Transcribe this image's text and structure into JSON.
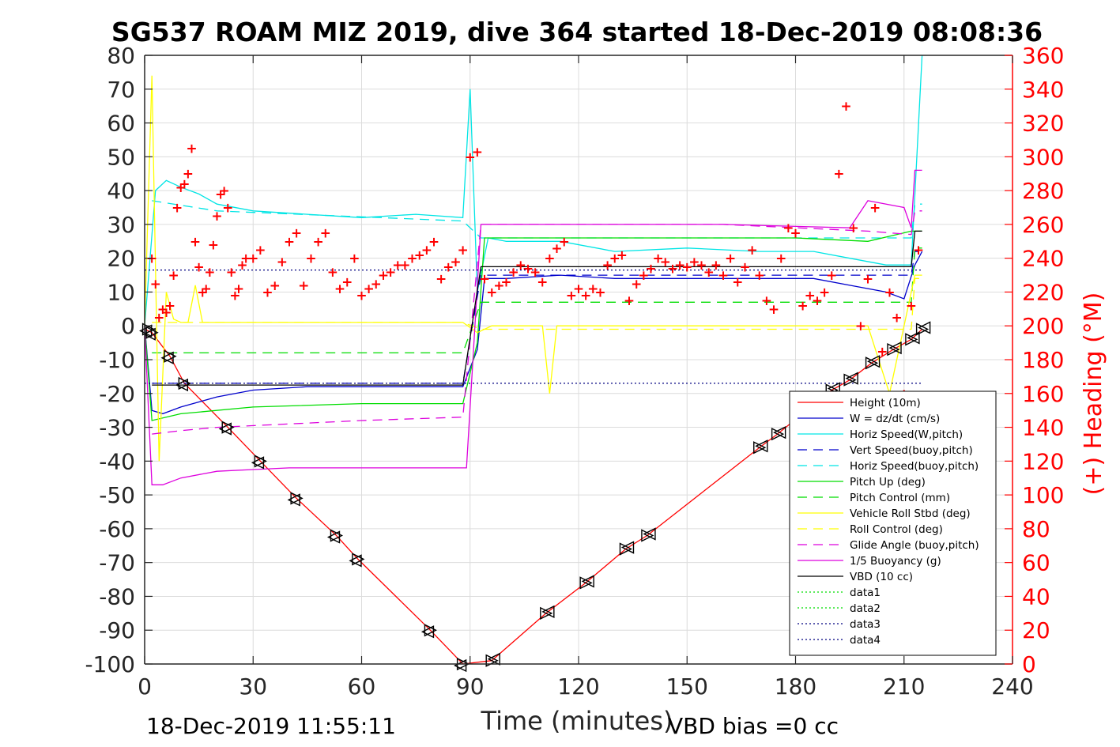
{
  "chart_data": {
    "type": "line",
    "title": "SG537 ROAM MIZ 2019, dive 364 started 18-Dec-2019 08:08:36",
    "xlabel": "Time (minutes)",
    "ylabel_right": "(+) Heading (°M)",
    "footer_left": "18-Dec-2019 11:55:11",
    "footer_right": "VBD bias =0 cc",
    "xlim": [
      0,
      240
    ],
    "ylim_left": [
      -100,
      80
    ],
    "ylim_right": [
      0,
      360
    ],
    "xticks": [
      0,
      30,
      60,
      90,
      120,
      150,
      180,
      210,
      240
    ],
    "yticks_left": [
      80,
      70,
      60,
      50,
      40,
      30,
      20,
      10,
      0,
      -10,
      -20,
      -30,
      -40,
      -50,
      -60,
      -70,
      -80,
      -90,
      -100
    ],
    "yticks_right": [
      360,
      340,
      320,
      300,
      280,
      260,
      240,
      220,
      200,
      180,
      160,
      140,
      120,
      100,
      80,
      60,
      40,
      20,
      0
    ],
    "grid": true,
    "legend_position": "bottom-right",
    "colors": {
      "axis": "#262626",
      "grid": "#dcdcdc",
      "right_axis": "#ff0000"
    },
    "series": [
      {
        "name": "Height (10m)",
        "color": "#ff0000",
        "dash": "",
        "x": [
          0,
          2,
          7,
          11,
          23,
          32,
          42,
          53,
          59,
          79,
          88,
          96,
          111,
          122,
          133,
          139,
          170,
          175,
          190,
          195,
          201,
          207,
          212,
          215
        ],
        "y": [
          -1,
          -2,
          -9,
          -17,
          -30,
          -40,
          -51,
          -62,
          -69,
          -90,
          -100,
          -99,
          -85,
          -76,
          -66,
          -62,
          -36,
          -32,
          -19,
          -16,
          -11,
          -7,
          -4,
          -1
        ]
      },
      {
        "name": "W = dz/dt (cm/s)",
        "color": "#0000cc",
        "dash": "",
        "x": [
          0,
          2,
          5,
          10,
          20,
          30,
          45,
          60,
          75,
          88,
          92,
          94,
          100,
          115,
          130,
          150,
          170,
          185,
          195,
          205,
          210,
          213,
          215
        ],
        "y": [
          0,
          -25,
          -26,
          -24,
          -21,
          -19,
          -18,
          -18,
          -18,
          -18,
          -7,
          14,
          14,
          15,
          14,
          14,
          14,
          14,
          12,
          10,
          8,
          18,
          22
        ]
      },
      {
        "name": "Horiz Speed(W,pitch)",
        "color": "#00e5e5",
        "dash": "",
        "x": [
          0,
          3,
          6,
          10,
          15,
          20,
          30,
          45,
          60,
          75,
          88,
          90,
          92,
          95,
          100,
          115,
          130,
          150,
          170,
          185,
          195,
          205,
          212,
          215
        ],
        "y": [
          0,
          40,
          43,
          41,
          39,
          36,
          34,
          33,
          32,
          33,
          32,
          70,
          10,
          26,
          25,
          25,
          22,
          23,
          22,
          22,
          20,
          18,
          18,
          80
        ]
      },
      {
        "name": "Vert Speed(buoy,pitch)",
        "color": "#0000cc",
        "dash": "12,8",
        "x": [
          2,
          88,
          93,
          212,
          213,
          215
        ],
        "y": [
          -17,
          -17,
          15,
          15,
          22,
          22
        ]
      },
      {
        "name": "Horiz Speed(buoy,pitch)",
        "color": "#00e5e5",
        "dash": "12,8",
        "x": [
          2,
          20,
          88,
          93,
          212,
          213,
          215
        ],
        "y": [
          37,
          34,
          31,
          26,
          26,
          36,
          36
        ]
      },
      {
        "name": "Pitch Up (deg)",
        "color": "#00dd00",
        "dash": "",
        "x": [
          0,
          2,
          10,
          30,
          60,
          88,
          92,
          94,
          120,
          150,
          180,
          200,
          212,
          215
        ],
        "y": [
          0,
          -28,
          -26,
          -24,
          -23,
          -23,
          -5,
          26,
          26,
          26,
          26,
          25,
          28,
          28
        ]
      },
      {
        "name": "Pitch Control (mm)",
        "color": "#00dd00",
        "dash": "12,8",
        "x": [
          2,
          88,
          93,
          212,
          213,
          215
        ],
        "y": [
          -8,
          -8,
          7,
          7,
          23,
          23
        ]
      },
      {
        "name": "Vehicle Roll Stbd (deg)",
        "color": "#ffff00",
        "dash": "",
        "x": [
          0,
          2,
          4,
          6,
          8,
          10,
          12,
          14,
          16,
          20,
          30,
          45,
          60,
          75,
          88,
          92,
          96,
          110,
          112,
          114,
          140,
          160,
          180,
          190,
          200,
          206,
          210,
          213,
          215
        ],
        "y": [
          0,
          74,
          -40,
          10,
          2,
          1,
          1,
          12,
          1,
          1,
          1,
          1,
          1,
          1,
          1,
          -2,
          0,
          0,
          -20,
          0,
          0,
          0,
          0,
          0,
          0,
          -20,
          0,
          15,
          15
        ]
      },
      {
        "name": "Roll Control (deg)",
        "color": "#ffff00",
        "dash": "12,8",
        "x": [
          2,
          88,
          93,
          212,
          213,
          215
        ],
        "y": [
          1,
          1,
          -1,
          -1,
          14,
          14
        ]
      },
      {
        "name": "Glide Angle (buoy,pitch)",
        "color": "#dd00dd",
        "dash": "12,8",
        "x": [
          2,
          10,
          20,
          40,
          60,
          88,
          93,
          120,
          160,
          200,
          212,
          213,
          215
        ],
        "y": [
          -32,
          -31,
          -30,
          -29,
          -28,
          -27,
          30,
          30,
          30,
          28,
          27,
          34,
          34
        ]
      },
      {
        "name": "1/5 Buoyancy (g)",
        "color": "#dd00dd",
        "dash": "",
        "x": [
          0,
          2,
          5,
          10,
          20,
          30,
          40,
          60,
          88,
          89,
          93,
          120,
          160,
          195,
          200,
          210,
          212,
          213,
          215
        ],
        "y": [
          0,
          -47,
          -47,
          -45,
          -43,
          -42.5,
          -42,
          -42,
          -42,
          -42,
          30,
          30,
          30,
          29,
          37,
          35,
          29,
          46,
          46
        ]
      },
      {
        "name": "VBD (10 cc)",
        "color": "#000000",
        "dash": "",
        "x": [
          2,
          88,
          93,
          212,
          213,
          215
        ],
        "y": [
          -17.5,
          -17.5,
          17.5,
          17.5,
          28,
          28
        ]
      },
      {
        "name": "data1",
        "color": "#00dd00",
        "dash": "2,3",
        "x": [],
        "y": []
      },
      {
        "name": "data2",
        "color": "#00dd00",
        "dash": "2,3",
        "x": [],
        "y": []
      },
      {
        "name": "data3",
        "color": "#000080",
        "dash": "2,3",
        "x": [
          0,
          215
        ],
        "y": [
          16.5,
          16.5
        ]
      },
      {
        "name": "data4",
        "color": "#000080",
        "dash": "2,3",
        "x": [
          0,
          215
        ],
        "y": [
          -17,
          -17
        ]
      }
    ],
    "heading_markers": {
      "color": "#ff0000",
      "x": [
        2,
        3,
        4,
        5,
        6,
        7,
        8,
        9,
        10,
        11,
        12,
        13,
        14,
        15,
        16,
        17,
        18,
        19,
        20,
        21,
        22,
        23,
        24,
        25,
        26,
        27,
        28,
        30,
        32,
        34,
        36,
        38,
        40,
        42,
        44,
        46,
        48,
        50,
        52,
        54,
        56,
        58,
        60,
        62,
        64,
        66,
        68,
        70,
        72,
        74,
        76,
        78,
        80,
        82,
        84,
        86,
        88,
        90,
        92,
        94,
        96,
        98,
        100,
        102,
        104,
        106,
        108,
        110,
        112,
        114,
        116,
        118,
        120,
        122,
        124,
        126,
        128,
        130,
        132,
        134,
        136,
        138,
        140,
        142,
        144,
        146,
        148,
        150,
        152,
        154,
        156,
        158,
        160,
        162,
        164,
        166,
        168,
        170,
        172,
        174,
        176,
        178,
        180,
        182,
        184,
        186,
        188,
        190,
        192,
        194,
        196,
        198,
        200,
        202,
        204,
        206,
        208,
        210,
        212,
        214
      ],
      "y": [
        240,
        225,
        205,
        210,
        208,
        212,
        230,
        270,
        282,
        284,
        290,
        305,
        250,
        235,
        220,
        222,
        232,
        248,
        265,
        278,
        280,
        270,
        232,
        218,
        222,
        236,
        240,
        240,
        245,
        220,
        224,
        238,
        250,
        255,
        224,
        240,
        250,
        255,
        232,
        222,
        226,
        240,
        218,
        222,
        225,
        230,
        232,
        236,
        236,
        240,
        242,
        245,
        250,
        228,
        235,
        238,
        245,
        300,
        303,
        228,
        220,
        224,
        226,
        232,
        236,
        234,
        232,
        226,
        240,
        246,
        250,
        218,
        222,
        218,
        222,
        220,
        236,
        240,
        242,
        215,
        225,
        230,
        234,
        240,
        238,
        234,
        236,
        235,
        238,
        236,
        232,
        236,
        230,
        240,
        226,
        235,
        245,
        230,
        215,
        210,
        240,
        258,
        255,
        212,
        218,
        215,
        220,
        230,
        290,
        330,
        258,
        200,
        228,
        270,
        185,
        220,
        205,
        160,
        212,
        245
      ]
    },
    "depth_markers": {
      "color": "#000000",
      "x": [
        1,
        2,
        7,
        11,
        23,
        32,
        42,
        53,
        59,
        79,
        88,
        96,
        111,
        122,
        133,
        139,
        170,
        175,
        190,
        195,
        201,
        207,
        212,
        215
      ],
      "y": [
        -1,
        -2,
        -9,
        -17,
        -30,
        -40,
        -51,
        -62,
        -69,
        -90,
        -100,
        -99,
        -85,
        -76,
        -66,
        -62,
        -36,
        -32,
        -19,
        -16,
        -11,
        -7,
        -4,
        -1
      ]
    }
  }
}
